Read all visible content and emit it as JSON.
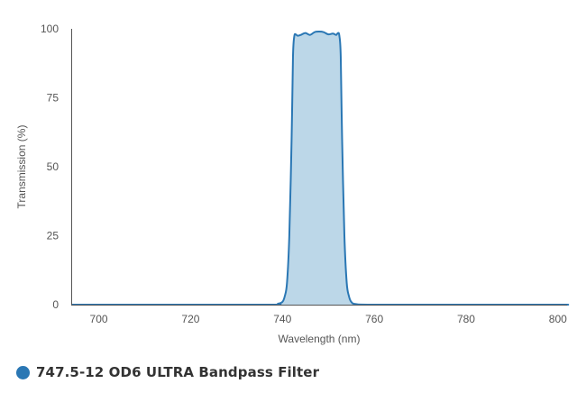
{
  "colors": {
    "series_line": "#2a77b4",
    "series_fill": "#bcd7e8",
    "axis": "#555555",
    "text": "#555555",
    "legend_text": "#333333"
  },
  "chart_data": {
    "type": "area",
    "title": "",
    "xlabel": "Wavelength (nm)",
    "ylabel": "Transmission (%)",
    "xlim": [
      694,
      802
    ],
    "ylim": [
      0,
      100
    ],
    "x_ticks": [
      700,
      720,
      740,
      760,
      780,
      800
    ],
    "y_ticks": [
      0,
      25,
      50,
      75,
      100
    ],
    "grid": false,
    "legend_position": "bottom-left",
    "series": [
      {
        "name": "747.5-12 OD6 ULTRA Bandpass Filter",
        "x": [
          694,
          700,
          720,
          738,
          739,
          740,
          740.5,
          741,
          741.5,
          742,
          742.3,
          742.6,
          742.9,
          743.3,
          744,
          745,
          746,
          747,
          748,
          749,
          750,
          751,
          751.7,
          752.1,
          752.4,
          752.7,
          753,
          753.5,
          754,
          754.5,
          755,
          756,
          760,
          780,
          800,
          802
        ],
        "y": [
          0,
          0,
          0,
          0,
          0.3,
          1,
          3,
          8,
          25,
          60,
          90,
          97.5,
          98,
          97.5,
          97.8,
          98.5,
          97.8,
          98.8,
          99,
          98.8,
          98,
          98.3,
          97.8,
          98.5,
          97.5,
          90,
          60,
          25,
          8,
          3,
          1,
          0.2,
          0,
          0,
          0,
          0
        ]
      }
    ]
  }
}
